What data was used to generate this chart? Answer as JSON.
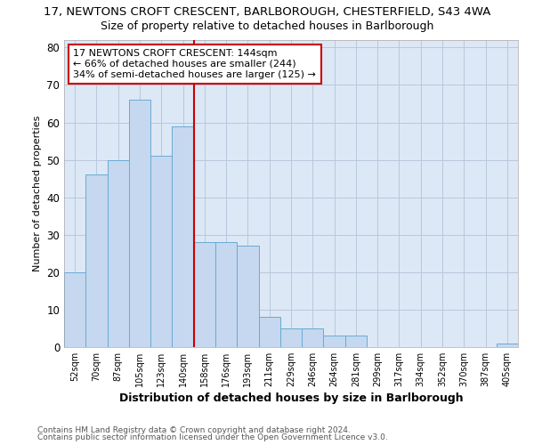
{
  "title_line1": "17, NEWTONS CROFT CRESCENT, BARLBOROUGH, CHESTERFIELD, S43 4WA",
  "title_line2": "Size of property relative to detached houses in Barlborough",
  "xlabel": "Distribution of detached houses by size in Barlborough",
  "ylabel": "Number of detached properties",
  "categories": [
    "52sqm",
    "70sqm",
    "87sqm",
    "105sqm",
    "123sqm",
    "140sqm",
    "158sqm",
    "176sqm",
    "193sqm",
    "211sqm",
    "229sqm",
    "246sqm",
    "264sqm",
    "281sqm",
    "299sqm",
    "317sqm",
    "334sqm",
    "352sqm",
    "370sqm",
    "387sqm",
    "405sqm"
  ],
  "values": [
    20,
    46,
    50,
    66,
    51,
    59,
    28,
    28,
    27,
    8,
    5,
    5,
    3,
    3,
    0,
    0,
    0,
    0,
    0,
    0,
    1
  ],
  "bar_color": "#c5d8ef",
  "bar_edge_color": "#6aaad4",
  "vline_color": "#cc0000",
  "annotation_text": "17 NEWTONS CROFT CRESCENT: 144sqm\n← 66% of detached houses are smaller (244)\n34% of semi-detached houses are larger (125) →",
  "annotation_box_color": "#ffffff",
  "annotation_box_edge_color": "#cc0000",
  "ylim": [
    0,
    82
  ],
  "yticks": [
    0,
    10,
    20,
    30,
    40,
    50,
    60,
    70,
    80
  ],
  "grid_color": "#b8c8dc",
  "bg_color": "#dce8f5",
  "footer_line1": "Contains HM Land Registry data © Crown copyright and database right 2024.",
  "footer_line2": "Contains public sector information licensed under the Open Government Licence v3.0."
}
